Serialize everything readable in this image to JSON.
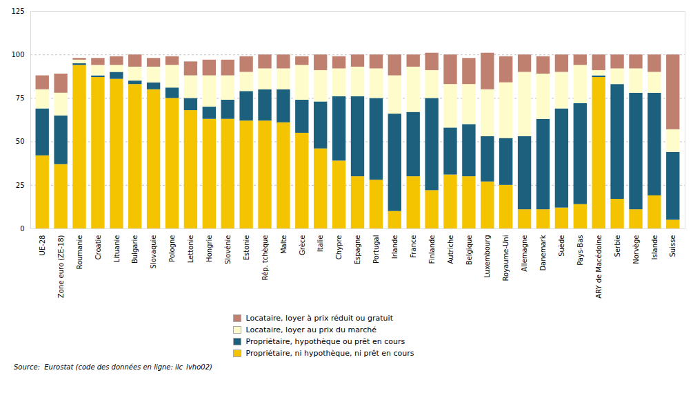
{
  "chart_data": {
    "type": "bar",
    "stacked": true,
    "grid": true,
    "caption": "Source:  Eurostat (code des données en ligne: ilc_lvho02)",
    "categories": [
      "UE-28",
      "Zone euro (ZE-18)",
      "Roumanie",
      "Croatie",
      "Lituanie",
      "Bulgarie",
      "Slovaquie",
      "Pologne",
      "Lettonie",
      "Hongrie",
      "Slovénie",
      "Estonie",
      "Rép. tchèque",
      "Malte",
      "Grèce",
      "Italie",
      "Chypre",
      "Espagne",
      "Portugal",
      "Irlande",
      "France",
      "Finlande",
      "Autriche",
      "Belgique",
      "Luxembourg",
      "Royaume-Uni",
      "Allemagne",
      "Danemark",
      "Suède",
      "Pays-Bas",
      "ARY de Macédoine",
      "Serbie",
      "Norvège",
      "Islande",
      "Suisse"
    ],
    "series": [
      {
        "name": "Propriétaire, ni hypothèque, ni prêt en cours",
        "color": "#F5C400",
        "values": [
          42,
          37,
          94,
          87,
          86,
          83,
          80,
          75,
          68,
          63,
          63,
          62,
          62,
          61,
          55,
          46,
          39,
          30,
          28,
          10,
          30,
          22,
          31,
          30,
          27,
          25,
          11,
          11,
          12,
          14,
          87,
          17,
          11,
          19,
          5
        ]
      },
      {
        "name": "Propriétaire, hypothèque ou prêt en cours",
        "color": "#1C607D",
        "values": [
          27,
          28,
          1,
          1,
          4,
          2,
          4,
          6,
          7,
          7,
          11,
          17,
          18,
          19,
          19,
          27,
          37,
          46,
          47,
          56,
          37,
          53,
          27,
          30,
          26,
          27,
          42,
          52,
          57,
          58,
          1,
          66,
          67,
          59,
          39
        ]
      },
      {
        "name": "Locataire, loyer au prix du marché",
        "color": "#FFFCCC",
        "values": [
          11,
          13,
          2,
          6,
          4,
          8,
          9,
          13,
          13,
          18,
          14,
          11,
          12,
          12,
          20,
          18,
          16,
          17,
          17,
          22,
          26,
          16,
          25,
          23,
          27,
          32,
          37,
          26,
          21,
          22,
          3,
          9,
          14,
          12,
          13
        ]
      },
      {
        "name": "Locataire, loyer à prix réduit ou gratuit",
        "color": "#C08070",
        "values": [
          8,
          11,
          1,
          4,
          5,
          7,
          5,
          5,
          8,
          9,
          9,
          9,
          8,
          8,
          5,
          9,
          7,
          7,
          8,
          12,
          7,
          10,
          17,
          15,
          21,
          15,
          10,
          10,
          10,
          6,
          9,
          8,
          8,
          10,
          43
        ]
      }
    ],
    "ylim": [
      0,
      125
    ],
    "yticks": [
      0,
      25,
      50,
      75,
      100,
      125
    ]
  }
}
